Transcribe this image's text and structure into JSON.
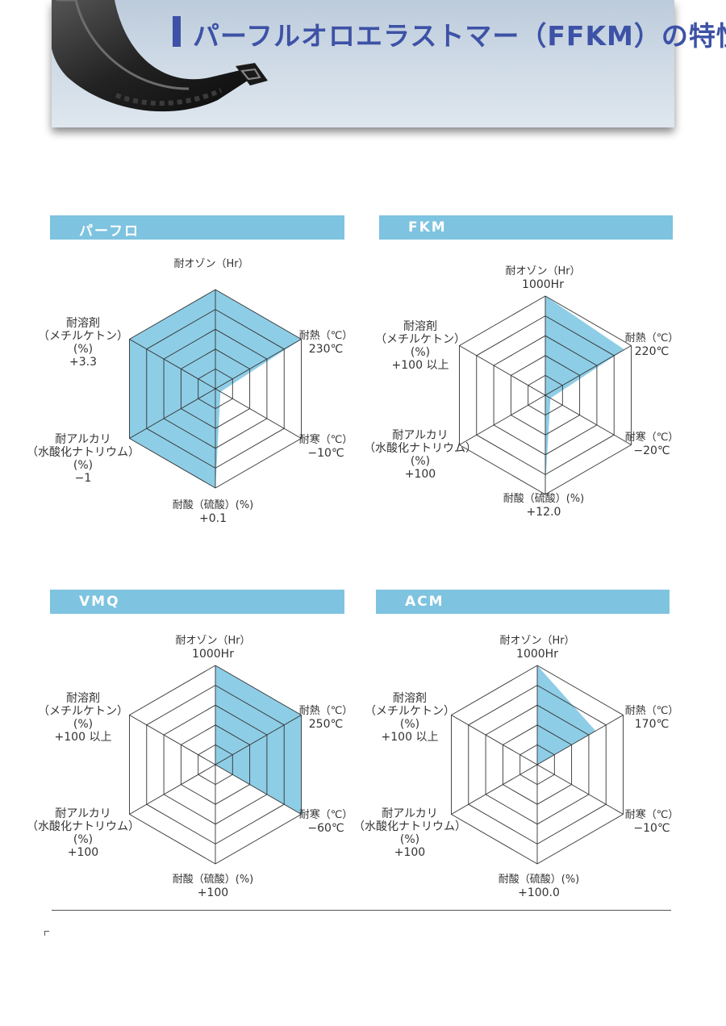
{
  "header": {
    "title": "パーフルオロエラストマー（FFKM）の特性"
  },
  "colors": {
    "accent": "#3d52a6",
    "section_header": "#7ec3e0",
    "radar_fill": "#8ecde6",
    "grid": "#333333"
  },
  "chart_data": [
    {
      "type": "radar",
      "title": "パーフロ",
      "axes": [
        {
          "label": "耐オゾン（Hr）",
          "value_label": ""
        },
        {
          "label": "耐熱（℃）",
          "value_label": "230℃"
        },
        {
          "label": "耐寒（℃）",
          "value_label": "−10℃"
        },
        {
          "label": "耐酸（硫酸）(%)",
          "value_label": "+0.1"
        },
        {
          "label_lines": [
            "耐アルカリ",
            "（水酸化ナトリウム）",
            "(%)"
          ],
          "value_label": "−1"
        },
        {
          "label_lines": [
            "耐溶剤",
            "（メチルケトン）",
            "(%)"
          ],
          "value_label": "+3.3"
        }
      ],
      "levels": 5,
      "values": [
        5,
        5,
        0.3,
        5,
        5,
        5
      ]
    },
    {
      "type": "radar",
      "title": "FKM",
      "axes": [
        {
          "label": "耐オゾン（Hr）",
          "value_label": "1000Hr"
        },
        {
          "label": "耐熱（℃）",
          "value_label": "220℃"
        },
        {
          "label": "耐寒（℃）",
          "value_label": "−20℃"
        },
        {
          "label": "耐酸（硫酸）(%)",
          "value_label": "+12.0"
        },
        {
          "label_lines": [
            "耐アルカリ",
            "（水酸化ナトリウム）",
            "(%)"
          ],
          "value_label": "+100"
        },
        {
          "label_lines": [
            "耐溶剤",
            "（メチルケトン）",
            "(%)"
          ],
          "value_label": "+100 以上"
        }
      ],
      "levels": 5,
      "values": [
        5,
        4.6,
        0.3,
        4.6,
        0,
        0
      ]
    },
    {
      "type": "radar",
      "title": "VMQ",
      "axes": [
        {
          "label": "耐オゾン（Hr）",
          "value_label": "1000Hr"
        },
        {
          "label": "耐熱（℃）",
          "value_label": "250℃"
        },
        {
          "label": "耐寒（℃）",
          "value_label": "−60℃"
        },
        {
          "label": "耐酸（硫酸）(%)",
          "value_label": "+100"
        },
        {
          "label_lines": [
            "耐アルカリ",
            "（水酸化ナトリウム）",
            "(%)"
          ],
          "value_label": "+100"
        },
        {
          "label_lines": [
            "耐溶剤",
            "（メチルケトン）",
            "(%)"
          ],
          "value_label": "+100 以上"
        }
      ],
      "levels": 5,
      "values": [
        5,
        5,
        5,
        0,
        0,
        0
      ]
    },
    {
      "type": "radar",
      "title": "ACM",
      "axes": [
        {
          "label": "耐オゾン（Hr）",
          "value_label": "1000Hr"
        },
        {
          "label": "耐熱（℃）",
          "value_label": "170℃"
        },
        {
          "label": "耐寒（℃）",
          "value_label": "−10℃"
        },
        {
          "label": "耐酸（硫酸）(%)",
          "value_label": "+100.0"
        },
        {
          "label_lines": [
            "耐アルカリ",
            "（水酸化ナトリウム）",
            "(%)"
          ],
          "value_label": "+100"
        },
        {
          "label_lines": [
            "耐溶剤",
            "（メチルケトン）",
            "(%)"
          ],
          "value_label": "+100 以上"
        }
      ],
      "levels": 5,
      "values": [
        5,
        3.4,
        0,
        0,
        0,
        0
      ]
    }
  ]
}
